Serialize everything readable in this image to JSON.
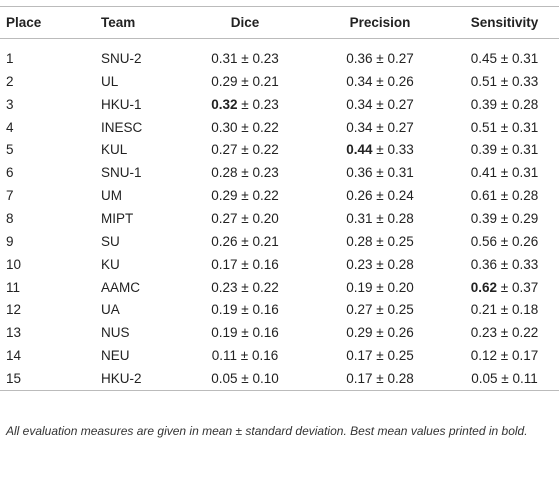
{
  "table": {
    "header": [
      "Place",
      "Team",
      "Dice",
      "Precision",
      "Sensitivity"
    ],
    "rows": [
      [
        "1",
        "SNU-2",
        "0.31 ± 0.23",
        "0.36 ± 0.27",
        "0.45 ± 0.31"
      ],
      [
        "2",
        "UL",
        "0.29 ± 0.21",
        "0.34 ± 0.26",
        "0.51 ± 0.33"
      ],
      [
        "3",
        "HKU-1",
        {
          "bold": "0.32",
          "text": " ± 0.23"
        },
        "0.34 ± 0.27",
        "0.39 ± 0.28"
      ],
      [
        "4",
        "INESC",
        "0.30 ± 0.22",
        "0.34 ± 0.27",
        "0.51 ± 0.31"
      ],
      [
        "5",
        "KUL",
        "0.27 ± 0.22",
        {
          "bold": "0.44",
          "text": " ± 0.33"
        },
        "0.39 ± 0.31"
      ],
      [
        "6",
        "SNU-1",
        "0.28 ± 0.23",
        "0.36 ± 0.31",
        "0.41 ± 0.31"
      ],
      [
        "7",
        "UM",
        "0.29 ± 0.22",
        "0.26 ± 0.24",
        "0.61 ± 0.28"
      ],
      [
        "8",
        "MIPT",
        "0.27 ± 0.20",
        "0.31 ± 0.28",
        "0.39 ± 0.29"
      ],
      [
        "9",
        "SU",
        "0.26 ± 0.21",
        "0.28 ± 0.25",
        "0.56 ± 0.26"
      ],
      [
        "10",
        "KU",
        "0.17 ± 0.16",
        "0.23 ± 0.28",
        "0.36 ± 0.33"
      ],
      [
        "11",
        "AAMC",
        "0.23 ± 0.22",
        "0.19 ± 0.20",
        {
          "bold": "0.62",
          "text": " ± 0.37"
        }
      ],
      [
        "12",
        "UA",
        "0.19 ± 0.16",
        "0.27 ± 0.25",
        "0.21 ± 0.18"
      ],
      [
        "13",
        "NUS",
        "0.19 ± 0.16",
        "0.29 ± 0.26",
        "0.23 ± 0.22"
      ],
      [
        "14",
        "NEU",
        "0.11 ± 0.16",
        "0.17 ± 0.25",
        "0.12 ± 0.17"
      ],
      [
        "15",
        "HKU-2",
        "0.05 ± 0.10",
        "0.17 ± 0.28",
        "0.05 ± 0.11"
      ]
    ],
    "footnote": "All evaluation measures are given in mean ± standard deviation. Best mean values printed in bold."
  }
}
